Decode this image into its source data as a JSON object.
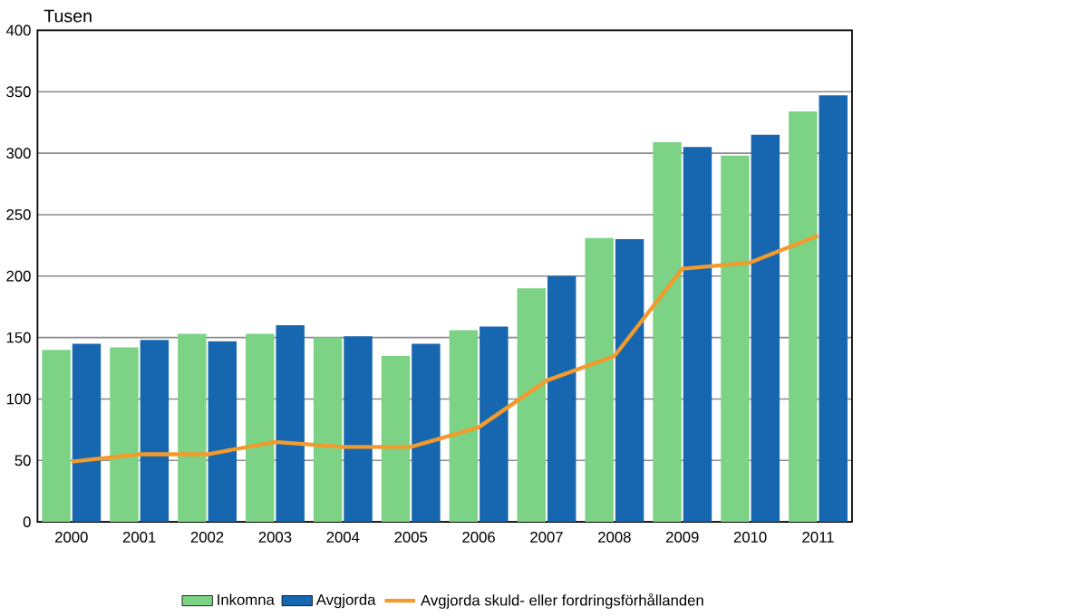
{
  "chart_data": {
    "type": "bar",
    "ylabel": "Tusen",
    "categories": [
      "2000",
      "2001",
      "2002",
      "2003",
      "2004",
      "2005",
      "2006",
      "2007",
      "2008",
      "2009",
      "2010",
      "2011"
    ],
    "series": [
      {
        "name": "Inkomna",
        "color": "#7dd385",
        "values": [
          140,
          142,
          153,
          153,
          150,
          135,
          156,
          190,
          231,
          309,
          298,
          334
        ]
      },
      {
        "name": "Avgjorda",
        "color": "#1767b0",
        "values": [
          145,
          148,
          147,
          160,
          151,
          145,
          159,
          200,
          230,
          305,
          315,
          347
        ]
      },
      {
        "name": "Avgjorda skuld- eller fordringsförhållanden",
        "type": "line",
        "color": "#f39a2c",
        "values": [
          49,
          55,
          55,
          65,
          61,
          61,
          77,
          115,
          135,
          206,
          211,
          233
        ]
      }
    ],
    "ylim": [
      0,
      400
    ],
    "yticks": [
      0,
      50,
      100,
      150,
      200,
      250,
      300,
      350,
      400
    ],
    "grid": "y",
    "legend": "bottom"
  }
}
